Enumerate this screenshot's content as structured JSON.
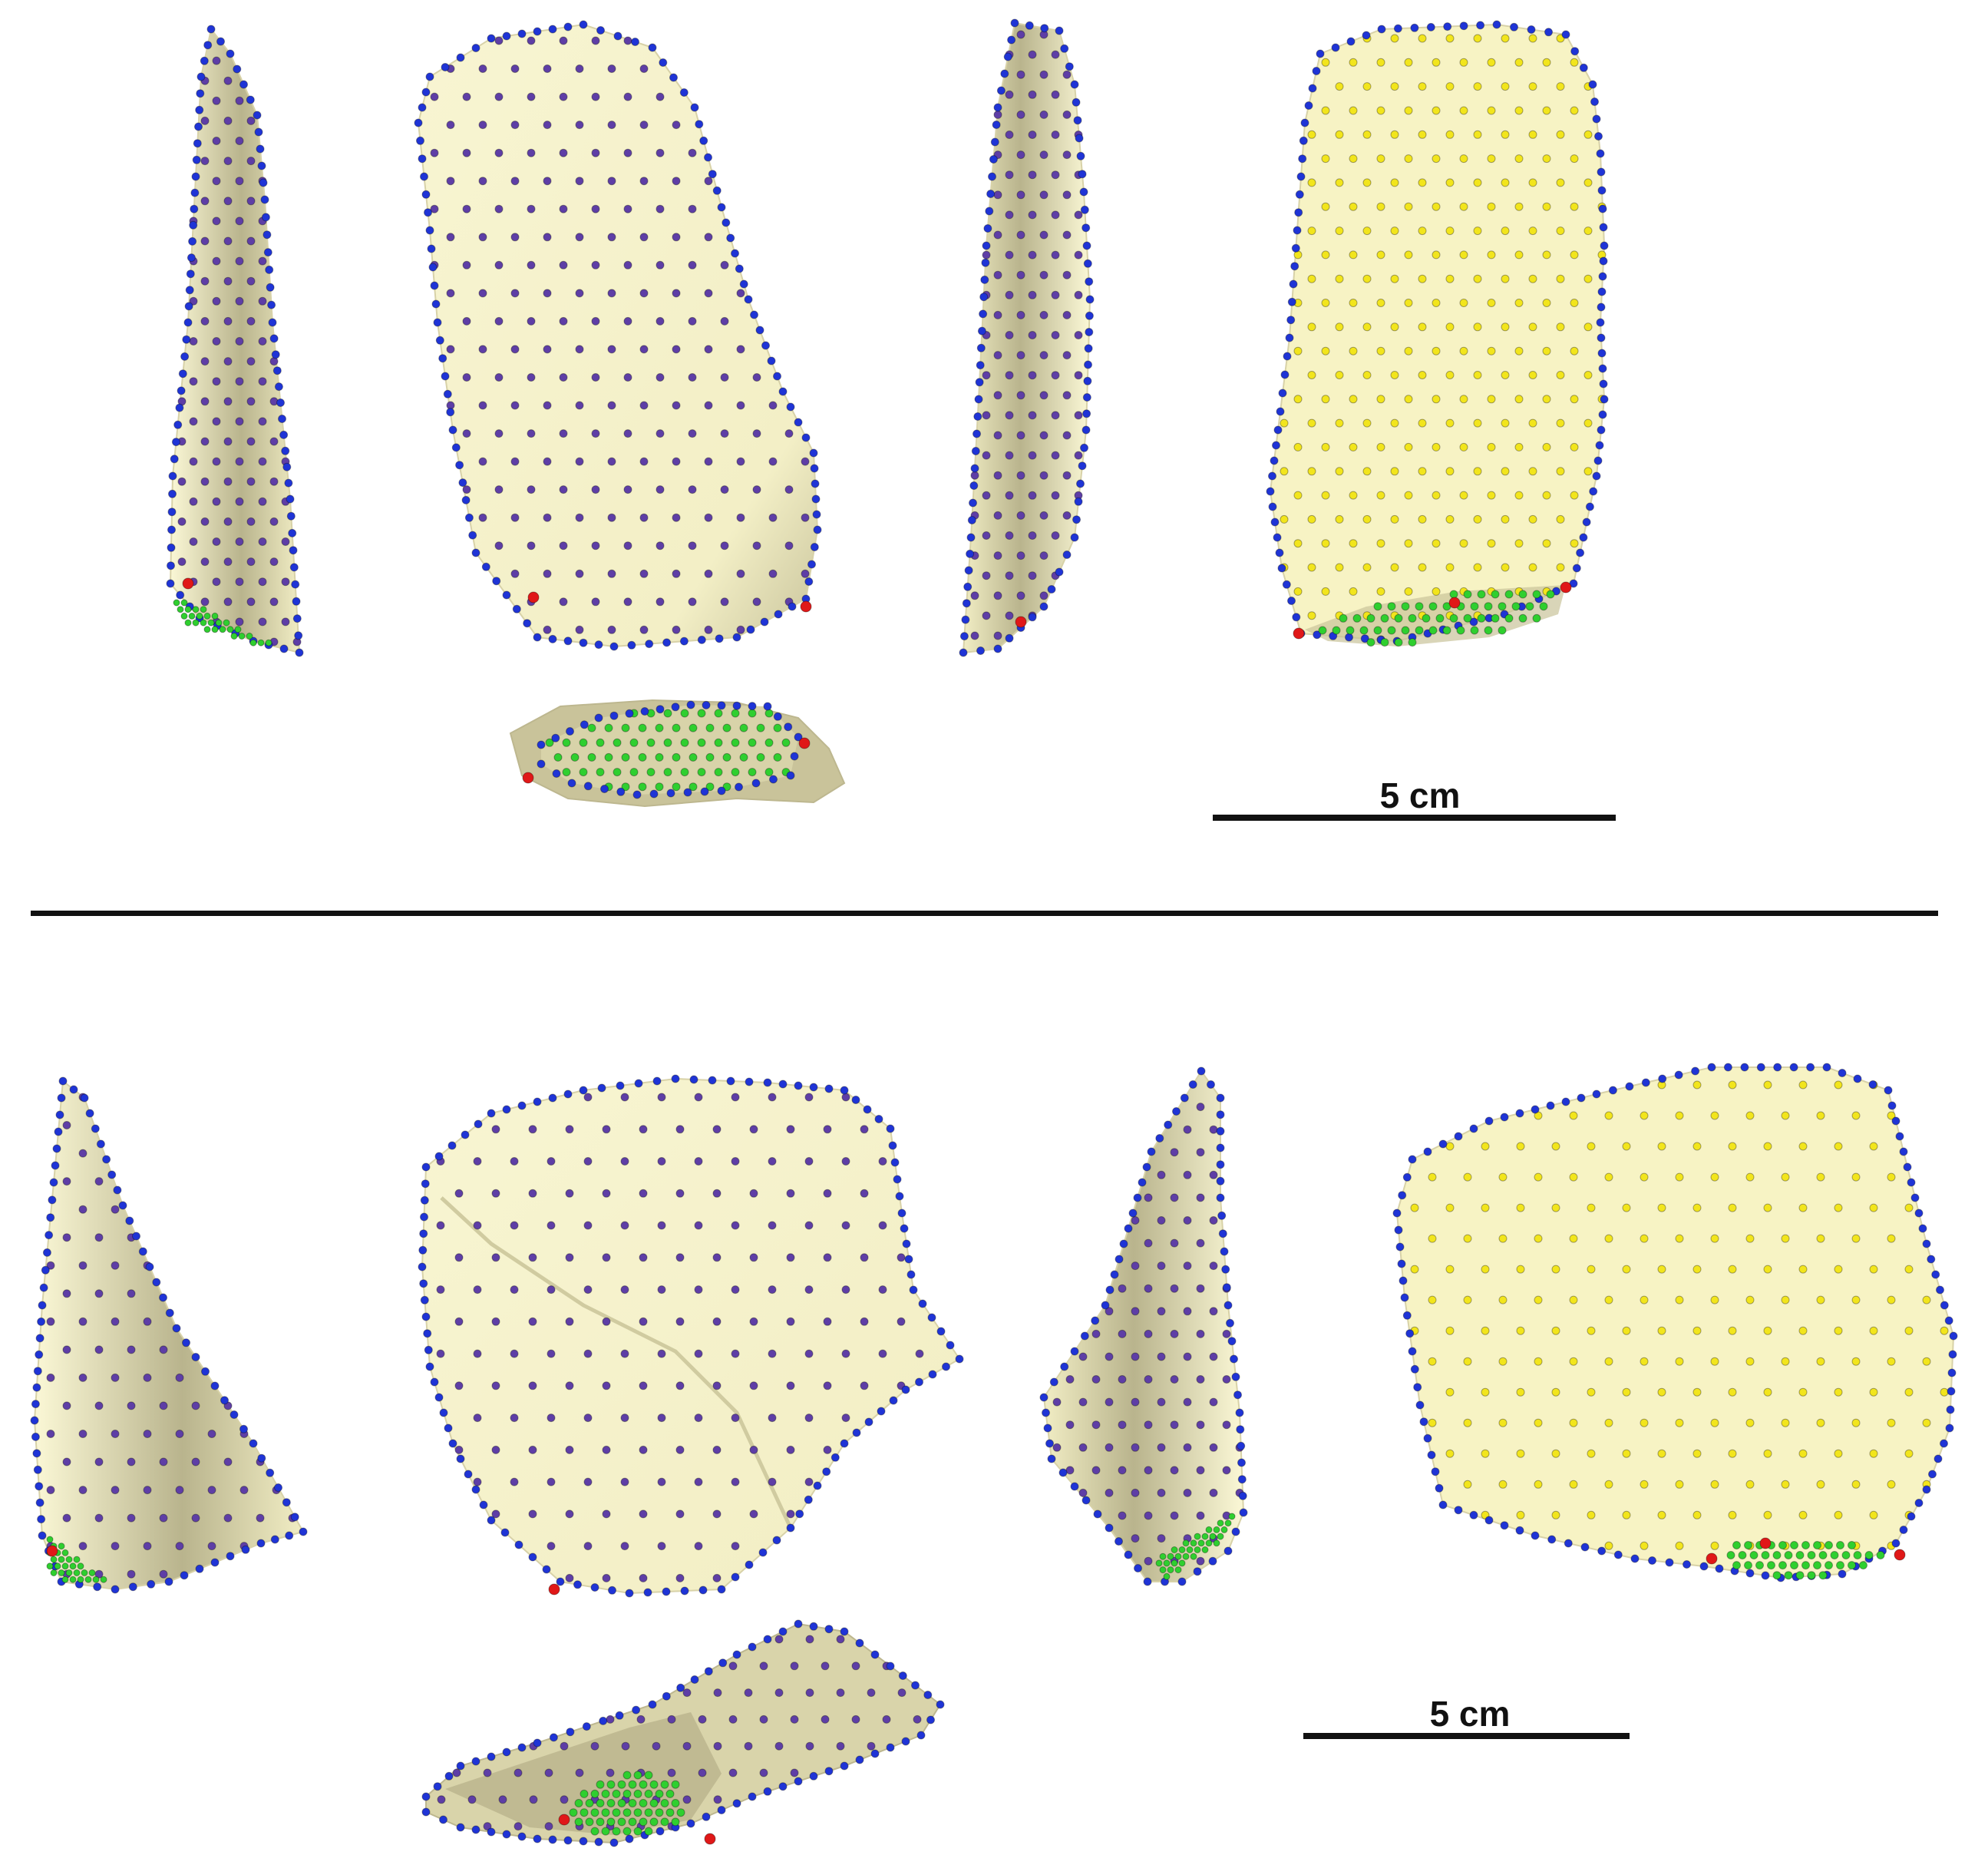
{
  "figure": {
    "panels": [
      {
        "id": "top",
        "views": [
          "lateral-left",
          "dorsal",
          "lateral-right",
          "ventral",
          "platform"
        ],
        "scale_bar": {
          "label": "5 cm"
        }
      },
      {
        "id": "bottom",
        "views": [
          "lateral-left",
          "dorsal",
          "lateral-right",
          "ventral",
          "platform"
        ],
        "scale_bar": {
          "label": "5 cm"
        }
      }
    ],
    "colors": {
      "surface": "#f7f3c9",
      "surface_shade": "#c9c39a",
      "outline_landmarks": "#1f34d6",
      "dorsal_landmarks": "#5e3ea6",
      "ventral_landmarks": "#f2e51c",
      "platform_landmarks": "#2fcf2f",
      "edge_landmarks": "#111111",
      "fixed_landmarks": "#e01818",
      "platform_edge_landmarks": "#f07a18",
      "divider": "#111111"
    }
  }
}
